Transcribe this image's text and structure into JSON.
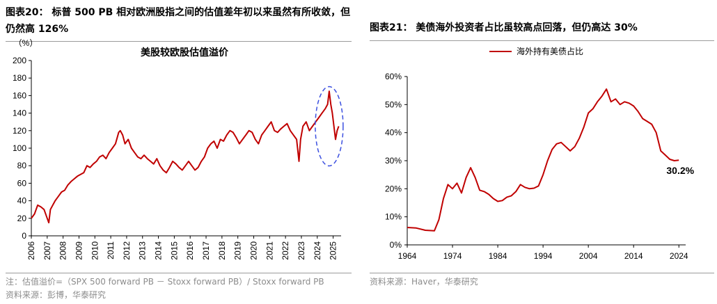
{
  "figure20": {
    "title": "图表20： 标普 500 PB 相对欧洲股指之间的估值差年初以来虽然有所收敛，但仍然高 126%",
    "footnote": "注：估值溢价=（SPX 500 forward PB － Stoxx forward PB）/ Stoxx forward PB",
    "source": "资料来源：彭博，华泰研究"
  },
  "figure21": {
    "title": "图表21： 美债海外投资者占比虽较高点回落，但仍高达 30%",
    "source": "资料来源：Haver，华泰研究"
  },
  "chart_data": [
    {
      "type": "line",
      "title": "美股较欧股估值溢价",
      "unit_label": "（%）",
      "xlabel": "",
      "ylabel": "",
      "ylim": [
        0,
        200
      ],
      "yticks": [
        0,
        20,
        40,
        60,
        80,
        100,
        120,
        140,
        160,
        180,
        200
      ],
      "xlim": [
        2006.0,
        2025.5
      ],
      "xticks": [
        "2006",
        "2007",
        "2008",
        "2009",
        "2010",
        "2011",
        "2012",
        "2013",
        "2014",
        "2015",
        "2016",
        "2017",
        "2018",
        "2019",
        "2020",
        "2021",
        "2022",
        "2023",
        "2024",
        "2025"
      ],
      "line_color": "#c00000",
      "highlight_ellipse_color": "#3b4fe0",
      "grid": false,
      "series": [
        {
          "values_note": "monthly approximation",
          "x": [
            2006.0,
            2006.2,
            2006.4,
            2006.6,
            2006.8,
            2007.0,
            2007.1,
            2007.2,
            2007.35,
            2007.5,
            2007.7,
            2007.9,
            2008.1,
            2008.3,
            2008.5,
            2008.7,
            2008.9,
            2009.1,
            2009.3,
            2009.5,
            2009.7,
            2009.9,
            2010.1,
            2010.3,
            2010.5,
            2010.7,
            2010.9,
            2011.1,
            2011.3,
            2011.5,
            2011.6,
            2011.75,
            2011.9,
            2012.1,
            2012.3,
            2012.5,
            2012.7,
            2012.9,
            2013.1,
            2013.3,
            2013.5,
            2013.7,
            2013.9,
            2014.1,
            2014.3,
            2014.5,
            2014.7,
            2014.9,
            2015.1,
            2015.3,
            2015.5,
            2015.7,
            2015.9,
            2016.1,
            2016.3,
            2016.5,
            2016.7,
            2016.9,
            2017.1,
            2017.3,
            2017.5,
            2017.7,
            2017.9,
            2018.1,
            2018.3,
            2018.5,
            2018.7,
            2018.9,
            2019.1,
            2019.3,
            2019.5,
            2019.7,
            2019.9,
            2020.1,
            2020.3,
            2020.5,
            2020.7,
            2020.9,
            2021.1,
            2021.3,
            2021.5,
            2021.7,
            2021.9,
            2022.1,
            2022.3,
            2022.5,
            2022.7,
            2022.85,
            2022.95,
            2023.1,
            2023.3,
            2023.5,
            2023.7,
            2023.9,
            2024.1,
            2024.3,
            2024.5,
            2024.65,
            2024.75,
            2024.85,
            2024.95,
            2025.05,
            2025.15,
            2025.25,
            2025.35
          ],
          "y": [
            20,
            25,
            35,
            33,
            30,
            20,
            15,
            30,
            35,
            40,
            45,
            50,
            52,
            58,
            62,
            65,
            68,
            70,
            72,
            80,
            78,
            82,
            85,
            90,
            92,
            88,
            95,
            100,
            105,
            118,
            120,
            115,
            105,
            110,
            100,
            95,
            90,
            88,
            92,
            88,
            85,
            82,
            88,
            80,
            75,
            72,
            78,
            85,
            82,
            78,
            75,
            80,
            85,
            80,
            75,
            78,
            85,
            90,
            100,
            105,
            108,
            100,
            110,
            108,
            115,
            120,
            118,
            112,
            105,
            110,
            115,
            120,
            118,
            110,
            105,
            115,
            120,
            125,
            130,
            120,
            118,
            122,
            125,
            128,
            120,
            115,
            110,
            85,
            110,
            125,
            130,
            120,
            125,
            130,
            135,
            140,
            145,
            150,
            165,
            150,
            140,
            125,
            110,
            120,
            125
          ]
        }
      ]
    },
    {
      "type": "line",
      "title": "",
      "legend": [
        "海外持有美债占比"
      ],
      "legend_position": "top-center",
      "ylim": [
        0,
        60
      ],
      "yticks": [
        "0%",
        "10%",
        "20%",
        "30%",
        "40%",
        "50%",
        "60%"
      ],
      "xlim": [
        1964,
        2025.5
      ],
      "xticks": [
        "1964",
        "1974",
        "1984",
        "1994",
        "2004",
        "2014",
        "2024"
      ],
      "end_label": "30.2%",
      "line_color": "#c00000",
      "grid": false,
      "series": [
        {
          "name": "海外持有美债占比",
          "x": [
            1964,
            1966,
            1968,
            1970,
            1971,
            1972,
            1973,
            1974,
            1975,
            1976,
            1977,
            1978,
            1979,
            1980,
            1981,
            1982,
            1983,
            1984,
            1985,
            1986,
            1987,
            1988,
            1989,
            1990,
            1991,
            1992,
            1993,
            1994,
            1995,
            1996,
            1997,
            1998,
            1999,
            2000,
            2001,
            2002,
            2003,
            2004,
            2005,
            2006,
            2007,
            2008,
            2009,
            2010,
            2011,
            2012,
            2013,
            2014,
            2015,
            2016,
            2017,
            2018,
            2019,
            2020,
            2021,
            2022,
            2023,
            2024
          ],
          "y": [
            6.2,
            6.0,
            5.2,
            5.0,
            9.0,
            16.5,
            21.5,
            20.0,
            22.0,
            18.5,
            24.0,
            27.5,
            24.0,
            19.5,
            19.0,
            18.0,
            16.5,
            15.5,
            15.8,
            17.0,
            17.5,
            19.0,
            21.5,
            20.5,
            20.0,
            20.2,
            21.0,
            25.0,
            30.0,
            34.0,
            36.0,
            36.5,
            35.0,
            33.5,
            35.0,
            38.0,
            42.0,
            47.0,
            48.5,
            51.0,
            53.0,
            55.5,
            51.0,
            52.0,
            50.0,
            51.0,
            50.5,
            49.5,
            47.5,
            45.0,
            44.0,
            43.0,
            40.0,
            33.5,
            32.0,
            30.5,
            30.0,
            30.2
          ]
        }
      ]
    }
  ]
}
